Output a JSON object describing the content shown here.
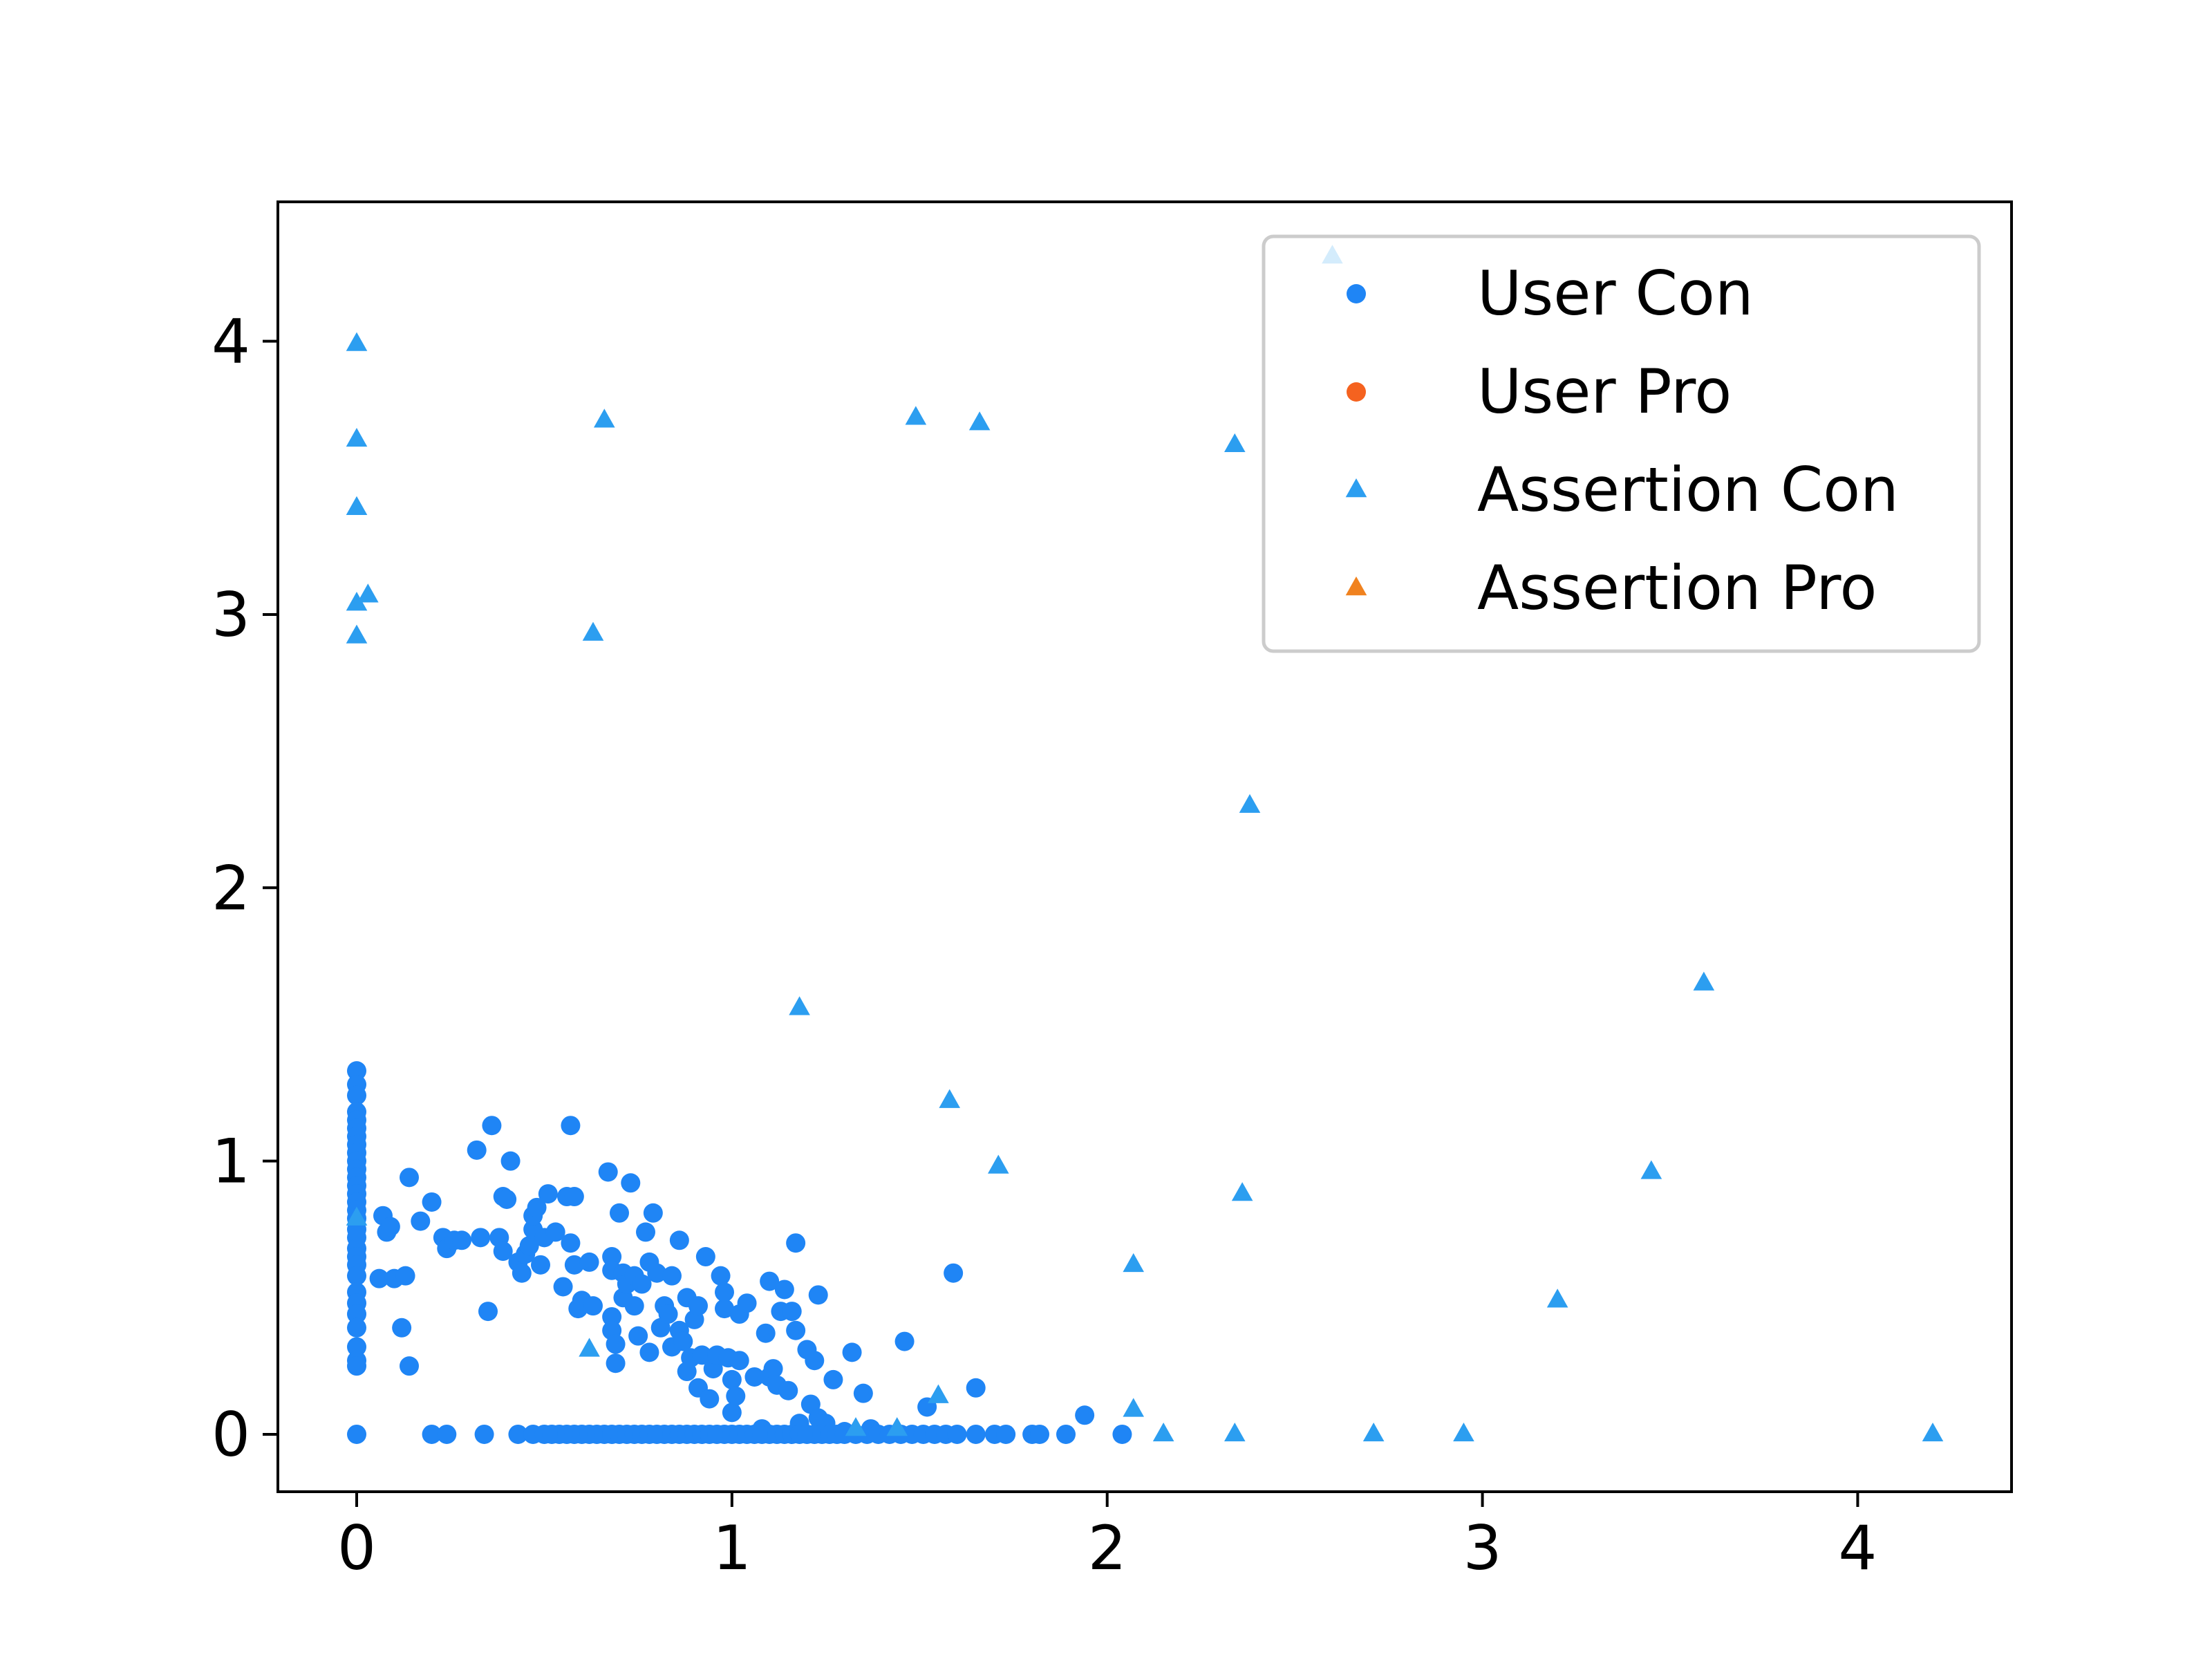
{
  "chart_data": {
    "type": "scatter",
    "title": "",
    "xlabel": "",
    "ylabel": "",
    "xlim": [
      -0.21,
      4.41
    ],
    "ylim": [
      -0.21,
      4.51
    ],
    "xticks": [
      0,
      1,
      2,
      3,
      4
    ],
    "yticks": [
      0,
      1,
      2,
      3,
      4
    ],
    "grid": false,
    "legend": {
      "placement": "top-right"
    },
    "series": [
      {
        "name": "User Con",
        "marker": "circle",
        "color": "#1f85f5",
        "points": [
          [
            0,
            1.33
          ],
          [
            0,
            1.28
          ],
          [
            0,
            1.24
          ],
          [
            0,
            1.18
          ],
          [
            0,
            1.15
          ],
          [
            0,
            1.12
          ],
          [
            0,
            1.09
          ],
          [
            0,
            1.06
          ],
          [
            0,
            1.03
          ],
          [
            0,
            1.0
          ],
          [
            0,
            0.97
          ],
          [
            0,
            0.94
          ],
          [
            0,
            0.91
          ],
          [
            0,
            0.88
          ],
          [
            0,
            0.85
          ],
          [
            0,
            0.82
          ],
          [
            0,
            0.79
          ],
          [
            0,
            0.75
          ],
          [
            0,
            0.72
          ],
          [
            0,
            0.68
          ],
          [
            0,
            0.65
          ],
          [
            0,
            0.62
          ],
          [
            0,
            0.58
          ],
          [
            0,
            0.52
          ],
          [
            0,
            0.48
          ],
          [
            0,
            0.44
          ],
          [
            0,
            0.39
          ],
          [
            0,
            0.32
          ],
          [
            0,
            0.27
          ],
          [
            0,
            0.25
          ],
          [
            0,
            0.0
          ],
          [
            0.07,
            0.8
          ],
          [
            0.08,
            0.74
          ],
          [
            0.09,
            0.76
          ],
          [
            0.06,
            0.57
          ],
          [
            0.1,
            0.57
          ],
          [
            0.12,
            0.39
          ],
          [
            0.13,
            0.58
          ],
          [
            0.14,
            0.25
          ],
          [
            0.14,
            0.94
          ],
          [
            0.17,
            0.78
          ],
          [
            0.2,
            0.85
          ],
          [
            0.23,
            0.72
          ],
          [
            0.24,
            0.68
          ],
          [
            0.26,
            0.71
          ],
          [
            0.28,
            0.71
          ],
          [
            0.32,
            1.04
          ],
          [
            0.33,
            0.72
          ],
          [
            0.36,
            1.13
          ],
          [
            0.35,
            0.45
          ],
          [
            0.38,
            0.72
          ],
          [
            0.39,
            0.67
          ],
          [
            0.39,
            0.87
          ],
          [
            0.4,
            0.86
          ],
          [
            0.41,
            1.0
          ],
          [
            0.43,
            0.63
          ],
          [
            0.44,
            0.59
          ],
          [
            0.45,
            0.66
          ],
          [
            0.46,
            0.69
          ],
          [
            0.47,
            0.75
          ],
          [
            0.47,
            0.8
          ],
          [
            0.48,
            0.83
          ],
          [
            0.49,
            0.62
          ],
          [
            0.5,
            0.72
          ],
          [
            0.51,
            0.88
          ],
          [
            0.53,
            0.74
          ],
          [
            0.55,
            0.54
          ],
          [
            0.56,
            0.87
          ],
          [
            0.57,
            0.7
          ],
          [
            0.58,
            0.87
          ],
          [
            0.58,
            0.62
          ],
          [
            0.59,
            0.46
          ],
          [
            0.6,
            0.49
          ],
          [
            0.62,
            0.63
          ],
          [
            0.63,
            0.47
          ],
          [
            0.57,
            1.13
          ],
          [
            0.67,
            0.96
          ],
          [
            0.68,
            0.65
          ],
          [
            0.68,
            0.6
          ],
          [
            0.68,
            0.43
          ],
          [
            0.68,
            0.38
          ],
          [
            0.69,
            0.33
          ],
          [
            0.69,
            0.26
          ],
          [
            0.7,
            0.81
          ],
          [
            0.71,
            0.59
          ],
          [
            0.71,
            0.5
          ],
          [
            0.72,
            0.55
          ],
          [
            0.73,
            0.92
          ],
          [
            0.74,
            0.47
          ],
          [
            0.74,
            0.58
          ],
          [
            0.75,
            0.36
          ],
          [
            0.76,
            0.55
          ],
          [
            0.77,
            0.74
          ],
          [
            0.78,
            0.3
          ],
          [
            0.78,
            0.63
          ],
          [
            0.79,
            0.81
          ],
          [
            0.8,
            0.59
          ],
          [
            0.81,
            0.39
          ],
          [
            0.82,
            0.47
          ],
          [
            0.83,
            0.44
          ],
          [
            0.84,
            0.58
          ],
          [
            0.84,
            0.32
          ],
          [
            0.86,
            0.71
          ],
          [
            0.86,
            0.38
          ],
          [
            0.87,
            0.34
          ],
          [
            0.88,
            0.5
          ],
          [
            0.88,
            0.23
          ],
          [
            0.89,
            0.28
          ],
          [
            0.9,
            0.42
          ],
          [
            0.91,
            0.47
          ],
          [
            0.91,
            0.17
          ],
          [
            0.92,
            0.29
          ],
          [
            0.93,
            0.65
          ],
          [
            0.94,
            0.13
          ],
          [
            0.95,
            0.24
          ],
          [
            0.96,
            0.29
          ],
          [
            0.97,
            0.58
          ],
          [
            0.98,
            0.46
          ],
          [
            0.98,
            0.52
          ],
          [
            0.99,
            0.28
          ],
          [
            1.0,
            0.2
          ],
          [
            1.0,
            0.08
          ],
          [
            1.01,
            0.14
          ],
          [
            1.02,
            0.27
          ],
          [
            1.02,
            0.44
          ],
          [
            1.04,
            0.48
          ],
          [
            1.06,
            0.21
          ],
          [
            1.08,
            0.02
          ],
          [
            1.09,
            0.37
          ],
          [
            1.1,
            0.56
          ],
          [
            1.1,
            0.21
          ],
          [
            1.11,
            0.24
          ],
          [
            1.12,
            0.18
          ],
          [
            1.13,
            0.45
          ],
          [
            1.14,
            0.53
          ],
          [
            1.15,
            0.16
          ],
          [
            1.16,
            0.45
          ],
          [
            1.17,
            0.38
          ],
          [
            1.17,
            0.7
          ],
          [
            1.18,
            0.04
          ],
          [
            1.2,
            0.31
          ],
          [
            1.21,
            0.11
          ],
          [
            1.22,
            0.27
          ],
          [
            1.23,
            0.51
          ],
          [
            1.23,
            0.06
          ],
          [
            1.25,
            0.04
          ],
          [
            1.27,
            0.2
          ],
          [
            1.3,
            0.01
          ],
          [
            1.32,
            0.3
          ],
          [
            1.35,
            0.15
          ],
          [
            1.37,
            0.02
          ],
          [
            1.46,
            0.34
          ],
          [
            1.52,
            0.1
          ],
          [
            1.59,
            0.59
          ],
          [
            1.65,
            0.17
          ],
          [
            1.94,
            0.07
          ],
          [
            0.2,
            0.0
          ],
          [
            0.24,
            0.0
          ],
          [
            0.34,
            0.0
          ],
          [
            0.43,
            0.0
          ],
          [
            0.47,
            0.0
          ],
          [
            0.5,
            0.0
          ],
          [
            0.52,
            0.0
          ],
          [
            0.54,
            0.0
          ],
          [
            0.56,
            0.0
          ],
          [
            0.58,
            0.0
          ],
          [
            0.6,
            0.0
          ],
          [
            0.62,
            0.0
          ],
          [
            0.64,
            0.0
          ],
          [
            0.66,
            0.0
          ],
          [
            0.68,
            0.0
          ],
          [
            0.7,
            0.0
          ],
          [
            0.72,
            0.0
          ],
          [
            0.74,
            0.0
          ],
          [
            0.76,
            0.0
          ],
          [
            0.78,
            0.0
          ],
          [
            0.8,
            0.0
          ],
          [
            0.82,
            0.0
          ],
          [
            0.84,
            0.0
          ],
          [
            0.86,
            0.0
          ],
          [
            0.88,
            0.0
          ],
          [
            0.9,
            0.0
          ],
          [
            0.92,
            0.0
          ],
          [
            0.94,
            0.0
          ],
          [
            0.96,
            0.0
          ],
          [
            0.98,
            0.0
          ],
          [
            1.0,
            0.0
          ],
          [
            1.02,
            0.0
          ],
          [
            1.04,
            0.0
          ],
          [
            1.06,
            0.0
          ],
          [
            1.08,
            0.0
          ],
          [
            1.1,
            0.0
          ],
          [
            1.12,
            0.0
          ],
          [
            1.14,
            0.0
          ],
          [
            1.16,
            0.0
          ],
          [
            1.18,
            0.0
          ],
          [
            1.2,
            0.0
          ],
          [
            1.22,
            0.0
          ],
          [
            1.24,
            0.0
          ],
          [
            1.26,
            0.0
          ],
          [
            1.28,
            0.0
          ],
          [
            1.3,
            0.0
          ],
          [
            1.33,
            0.0
          ],
          [
            1.36,
            0.0
          ],
          [
            1.39,
            0.0
          ],
          [
            1.42,
            0.0
          ],
          [
            1.45,
            0.0
          ],
          [
            1.48,
            0.0
          ],
          [
            1.51,
            0.0
          ],
          [
            1.54,
            0.0
          ],
          [
            1.57,
            0.0
          ],
          [
            1.6,
            0.0
          ],
          [
            1.65,
            0.0
          ],
          [
            1.7,
            0.0
          ],
          [
            1.73,
            0.0
          ],
          [
            1.8,
            0.0
          ],
          [
            1.82,
            0.0
          ],
          [
            1.89,
            0.0
          ],
          [
            2.04,
            0.0
          ]
        ]
      },
      {
        "name": "User Pro",
        "marker": "circle",
        "color": "#f5621f",
        "points": []
      },
      {
        "name": "Assertion Con",
        "marker": "triangle",
        "color": "#2c9ef0",
        "points": [
          [
            0,
            3.99
          ],
          [
            0,
            3.64
          ],
          [
            0,
            3.39
          ],
          [
            0,
            3.04
          ],
          [
            0.03,
            3.07
          ],
          [
            0,
            2.92
          ],
          [
            0,
            0.79
          ],
          [
            0.63,
            2.93
          ],
          [
            0.66,
            3.71
          ],
          [
            0.62,
            0.31
          ],
          [
            1.18,
            1.56
          ],
          [
            1.33,
            0.02
          ],
          [
            1.44,
            0.02
          ],
          [
            1.49,
            3.72
          ],
          [
            1.55,
            0.14
          ],
          [
            1.58,
            1.22
          ],
          [
            1.66,
            3.7
          ],
          [
            1.71,
            0.98
          ],
          [
            2.07,
            0.62
          ],
          [
            2.07,
            0.09
          ],
          [
            2.15,
            0.0
          ],
          [
            2.34,
            3.62
          ],
          [
            2.34,
            0.0
          ],
          [
            2.36,
            0.88
          ],
          [
            2.38,
            2.3
          ],
          [
            2.6,
            4.31
          ],
          [
            2.71,
            0.0
          ],
          [
            2.95,
            0.0
          ],
          [
            3.2,
            0.49
          ],
          [
            3.45,
            0.96
          ],
          [
            3.59,
            1.65
          ],
          [
            4.2,
            0.0
          ]
        ]
      },
      {
        "name": "Assertion Pro",
        "marker": "triangle",
        "color": "#f0821f",
        "points": []
      }
    ]
  }
}
